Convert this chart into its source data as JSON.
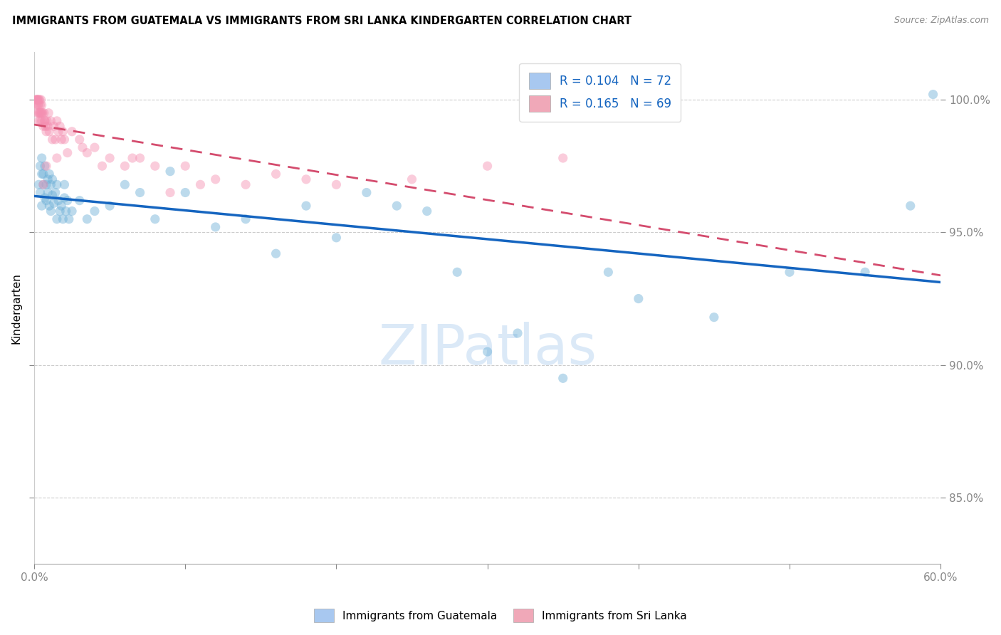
{
  "title": "IMMIGRANTS FROM GUATEMALA VS IMMIGRANTS FROM SRI LANKA KINDERGARTEN CORRELATION CHART",
  "source": "Source: ZipAtlas.com",
  "ylabel": "Kindergarten",
  "xlim": [
    0.0,
    60.0
  ],
  "ylim": [
    82.5,
    101.8
  ],
  "yticks": [
    85.0,
    90.0,
    95.0,
    100.0
  ],
  "ytick_labels": [
    "85.0%",
    "90.0%",
    "95.0%",
    "100.0%"
  ],
  "xticks": [
    0.0,
    10.0,
    20.0,
    30.0,
    40.0,
    50.0,
    60.0
  ],
  "xtick_labels": [
    "0.0%",
    "",
    "",
    "",
    "",
    "",
    "60.0%"
  ],
  "legend_blue_color": "#a8c8f0",
  "legend_pink_color": "#f0a8b8",
  "blue_color": "#6baed6",
  "pink_color": "#f48fb1",
  "trend_blue_color": "#1565c0",
  "trend_pink_color": "#d44c6e",
  "bottom_legend_blue": "Immigrants from Guatemala",
  "bottom_legend_pink": "Immigrants from Sri Lanka",
  "watermark": "ZIPatlas",
  "guatemala_x": [
    0.3,
    0.4,
    0.4,
    0.5,
    0.5,
    0.5,
    0.6,
    0.6,
    0.7,
    0.7,
    0.8,
    0.8,
    0.9,
    0.9,
    1.0,
    1.0,
    1.1,
    1.1,
    1.2,
    1.2,
    1.3,
    1.4,
    1.5,
    1.5,
    1.6,
    1.7,
    1.8,
    1.9,
    2.0,
    2.0,
    2.1,
    2.2,
    2.3,
    2.5,
    3.0,
    3.5,
    4.0,
    5.0,
    6.0,
    7.0,
    8.0,
    9.0,
    10.0,
    12.0,
    14.0,
    16.0,
    18.0,
    20.0,
    22.0,
    24.0,
    26.0,
    28.0,
    30.0,
    32.0,
    35.0,
    38.0,
    40.0,
    45.0,
    50.0,
    55.0,
    58.0,
    59.5
  ],
  "guatemala_y": [
    96.8,
    97.5,
    96.5,
    97.2,
    96.0,
    97.8,
    96.8,
    97.2,
    97.5,
    96.3,
    96.8,
    96.2,
    97.0,
    96.5,
    97.2,
    96.0,
    96.8,
    95.8,
    97.0,
    96.4,
    96.1,
    96.5,
    96.8,
    95.5,
    96.2,
    95.8,
    96.0,
    95.5,
    96.3,
    96.8,
    95.8,
    96.2,
    95.5,
    95.8,
    96.2,
    95.5,
    95.8,
    96.0,
    96.8,
    96.5,
    95.5,
    97.3,
    96.5,
    95.2,
    95.5,
    94.2,
    96.0,
    94.8,
    96.5,
    96.0,
    95.8,
    93.5,
    90.5,
    91.2,
    89.5,
    93.5,
    92.5,
    91.8,
    93.5,
    93.5,
    96.0,
    100.2
  ],
  "srilanka_x": [
    0.1,
    0.15,
    0.15,
    0.2,
    0.2,
    0.2,
    0.25,
    0.25,
    0.3,
    0.3,
    0.3,
    0.35,
    0.35,
    0.4,
    0.4,
    0.45,
    0.45,
    0.5,
    0.5,
    0.55,
    0.6,
    0.65,
    0.7,
    0.75,
    0.8,
    0.85,
    0.9,
    0.95,
    1.0,
    1.1,
    1.2,
    1.3,
    1.4,
    1.5,
    1.6,
    1.7,
    1.8,
    1.9,
    2.0,
    2.5,
    3.0,
    3.5,
    4.0,
    5.0,
    6.0,
    7.0,
    8.0,
    10.0,
    12.0,
    14.0,
    16.0,
    18.0,
    20.0,
    25.0,
    30.0,
    35.0,
    3.2,
    0.6,
    0.8,
    1.5,
    2.2,
    4.5,
    6.5,
    9.0,
    11.0,
    0.5,
    0.3,
    0.4,
    0.7
  ],
  "srilanka_y": [
    100.0,
    100.0,
    99.8,
    100.0,
    100.0,
    99.5,
    99.8,
    100.0,
    99.5,
    100.0,
    99.2,
    99.5,
    100.0,
    99.8,
    99.2,
    99.5,
    100.0,
    99.2,
    99.8,
    99.5,
    99.0,
    99.5,
    99.2,
    99.0,
    98.8,
    99.2,
    99.0,
    99.5,
    98.8,
    99.2,
    98.5,
    99.0,
    98.5,
    99.2,
    98.8,
    99.0,
    98.5,
    98.8,
    98.5,
    98.8,
    98.5,
    98.0,
    98.2,
    97.8,
    97.5,
    97.8,
    97.5,
    97.5,
    97.0,
    96.8,
    97.2,
    97.0,
    96.8,
    97.0,
    97.5,
    97.8,
    98.2,
    96.8,
    97.5,
    97.8,
    98.0,
    97.5,
    97.8,
    96.5,
    96.8,
    99.5,
    99.8,
    99.5,
    99.2
  ]
}
